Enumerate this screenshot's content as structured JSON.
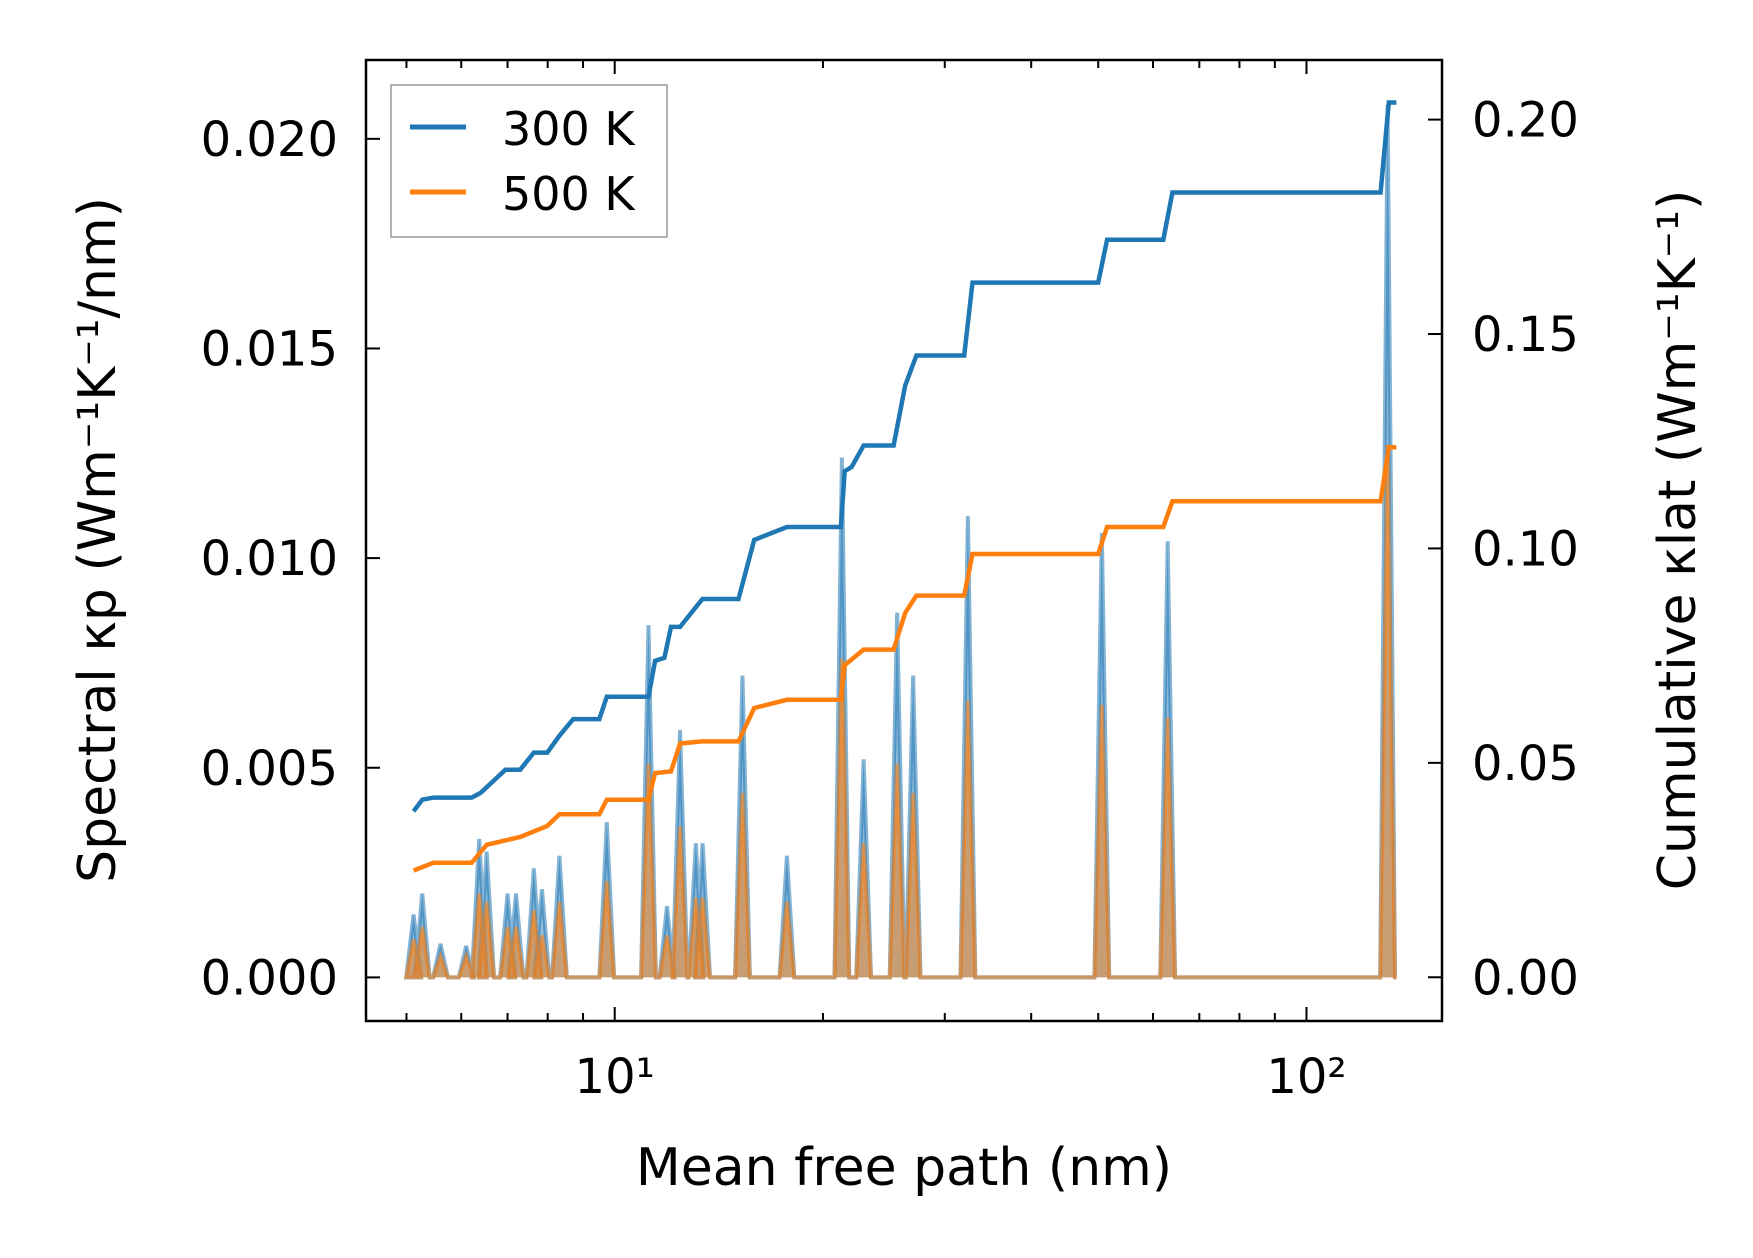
{
  "chart_data": {
    "type": "line",
    "xscale": "log",
    "xlabel": "Mean free path (nm)",
    "ylabel_left": "Spectral κp (Wm⁻¹K⁻¹/nm)",
    "ylabel_right": "Cumulative κlat (Wm⁻¹K⁻¹)",
    "xlim": [
      4.37,
      157
    ],
    "ylim_left": [
      -0.00104,
      0.02188
    ],
    "ylim_right": [
      -0.0102,
      0.2139
    ],
    "x_ticks": [
      {
        "value": 10,
        "label": "10¹"
      },
      {
        "value": 100,
        "label": "10²"
      }
    ],
    "y_left_ticks": [
      {
        "value": 0,
        "label": "0.000"
      },
      {
        "value": 0.005,
        "label": "0.005"
      },
      {
        "value": 0.01,
        "label": "0.010"
      },
      {
        "value": 0.015,
        "label": "0.015"
      },
      {
        "value": 0.02,
        "label": "0.020"
      }
    ],
    "y_right_ticks": [
      {
        "value": 0,
        "label": "0.00"
      },
      {
        "value": 0.05,
        "label": "0.05"
      },
      {
        "value": 0.1,
        "label": "0.10"
      },
      {
        "value": 0.15,
        "label": "0.15"
      },
      {
        "value": 0.2,
        "label": "0.20"
      }
    ],
    "legend": {
      "placement": "top-left",
      "entries": [
        "300 K",
        "500 K"
      ]
    },
    "grid": false,
    "colors": {
      "300 K": "#1f77b4",
      "500 K": "#ff7f0e"
    },
    "cumulative": [
      {
        "name": "300 K",
        "x": [
          5.12,
          5.27,
          5.47,
          6.21,
          6.4,
          6.95,
          7.3,
          7.64,
          7.99,
          8.32,
          8.71,
          9.5,
          9.74,
          11.19,
          11.44,
          11.8,
          12.06,
          12.43,
          13.39,
          15.1,
          15.91,
          17.74,
          21.23,
          21.5,
          22.0,
          22.9,
          25.3,
          26.3,
          27.3,
          32.0,
          32.9,
          50.0,
          51.5,
          62.1,
          64.0,
          128,
          131.5,
          134.9
        ],
        "y": [
          0.0387,
          0.0414,
          0.0419,
          0.0419,
          0.043,
          0.0484,
          0.0484,
          0.0524,
          0.0524,
          0.0563,
          0.0602,
          0.0602,
          0.0654,
          0.0654,
          0.0738,
          0.0745,
          0.0817,
          0.0817,
          0.0882,
          0.0882,
          0.102,
          0.105,
          0.105,
          0.118,
          0.119,
          0.124,
          0.124,
          0.138,
          0.145,
          0.145,
          0.162,
          0.162,
          0.172,
          0.172,
          0.183,
          0.183,
          0.204,
          0.204
        ]
      },
      {
        "name": "500 K",
        "x": [
          5.12,
          5.47,
          6.21,
          6.53,
          7.3,
          7.99,
          8.32,
          9.5,
          9.74,
          11.19,
          11.44,
          12.06,
          12.43,
          13.39,
          15.1,
          15.91,
          17.74,
          21.23,
          21.5,
          22.9,
          25.3,
          26.3,
          27.3,
          32.0,
          32.9,
          50.0,
          51.5,
          62.1,
          64.0,
          128,
          131.5,
          134.9
        ],
        "y": [
          0.0249,
          0.0267,
          0.0267,
          0.0309,
          0.0327,
          0.0353,
          0.038,
          0.038,
          0.0414,
          0.0414,
          0.0476,
          0.048,
          0.0545,
          0.055,
          0.055,
          0.0628,
          0.0647,
          0.0647,
          0.0728,
          0.0764,
          0.0764,
          0.085,
          0.089,
          0.089,
          0.0987,
          0.0987,
          0.105,
          0.105,
          0.111,
          0.111,
          0.1236,
          0.1236
        ]
      }
    ],
    "spectral": [
      {
        "name": "300 K",
        "x": [
          5.12,
          5.27,
          5.6,
          6.1,
          6.37,
          6.53,
          7.0,
          7.2,
          7.64,
          7.85,
          8.32,
          9.74,
          11.19,
          11.9,
          12.43,
          13.1,
          13.4,
          15.3,
          17.74,
          21.3,
          22.9,
          25.6,
          27.0,
          32.4,
          50.6,
          63.0,
          131.0
        ],
        "y": [
          0.0015,
          0.002,
          0.0008,
          0.00075,
          0.0033,
          0.003,
          0.002,
          0.002,
          0.0026,
          0.0021,
          0.0029,
          0.0037,
          0.0084,
          0.0017,
          0.0059,
          0.0032,
          0.0032,
          0.0072,
          0.0029,
          0.0124,
          0.0052,
          0.0087,
          0.0072,
          0.011,
          0.0106,
          0.0104,
          0.0208
        ]
      },
      {
        "name": "500 K",
        "x": [
          5.12,
          5.27,
          5.6,
          6.1,
          6.37,
          6.53,
          7.0,
          7.2,
          7.64,
          7.85,
          8.32,
          9.74,
          11.19,
          11.9,
          12.43,
          13.1,
          13.4,
          15.3,
          17.74,
          21.3,
          22.9,
          25.6,
          27.0,
          32.4,
          50.6,
          63.0,
          131.0
        ],
        "y": [
          0.0009,
          0.0012,
          0.0005,
          0.0005,
          0.002,
          0.0018,
          0.0012,
          0.0012,
          0.0016,
          0.001,
          0.0018,
          0.0023,
          0.0051,
          0.001,
          0.0036,
          0.0019,
          0.0019,
          0.0044,
          0.0018,
          0.0076,
          0.0032,
          0.0051,
          0.0044,
          0.0066,
          0.0065,
          0.0062,
          0.0127
        ]
      }
    ]
  }
}
